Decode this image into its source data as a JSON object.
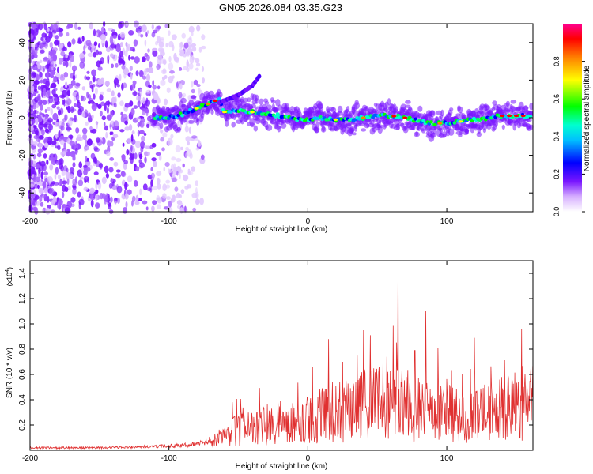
{
  "title": "GN05.2026.084.03.35.G23",
  "chart_data": [
    {
      "type": "heatmap",
      "title": "GN05.2026.084.03.35.G23",
      "xlabel": "Height of straight line (km)",
      "ylabel": "Frequency (Hz)",
      "xlim": [
        -200,
        162
      ],
      "ylim": [
        -50,
        50
      ],
      "xticks": [
        -200,
        -100,
        0,
        100
      ],
      "xtick_labels": [
        "-200",
        "-100",
        "0",
        "100"
      ],
      "yticks": [
        -40,
        -20,
        0,
        20,
        40
      ],
      "ytick_labels": [
        "-40",
        "-20",
        "0",
        "20",
        "40"
      ],
      "colorbar": {
        "label": "Normalized spectral amplitude",
        "range": [
          0,
          1
        ],
        "ticks": [
          0,
          0.2,
          0.4,
          0.6,
          0.8
        ],
        "tick_labels": [
          "0.0",
          "0.2",
          "0.4",
          "0.6",
          "0.8"
        ],
        "colormap": "rainbow (white-violet-blue-cyan-green-yellow-red-magenta)"
      },
      "ridge": {
        "x": [
          -110,
          -100,
          -90,
          -80,
          -70,
          -64,
          -60,
          -50,
          -40,
          -30,
          -20,
          -10,
          0,
          10,
          20,
          30,
          40,
          50,
          60,
          70,
          80,
          90,
          100,
          110,
          120,
          130,
          140,
          150,
          160
        ],
        "y": [
          0,
          0,
          2,
          5,
          8,
          10,
          3,
          4,
          3,
          2,
          1,
          -1,
          -1,
          0,
          -1,
          -1,
          0,
          1,
          1,
          0,
          -2,
          -3,
          -3,
          -2,
          -1,
          0,
          1,
          1,
          1
        ]
      },
      "branch": {
        "x": [
          -64,
          -50,
          -40,
          -35
        ],
        "y": [
          8,
          12,
          17,
          22
        ]
      },
      "grid": false
    },
    {
      "type": "line",
      "xlabel": "Height of straight line (km)",
      "ylabel": "SNR (10 * v/v)",
      "y_multiplier": "(x10",
      "y_multiplier_exp": "4",
      "xlim": [
        -200,
        162
      ],
      "ylim": [
        0,
        1.5
      ],
      "xticks": [
        -200,
        -100,
        0,
        100
      ],
      "xtick_labels": [
        "-200",
        "-100",
        "0",
        "100"
      ],
      "yticks": [
        0.2,
        0.4,
        0.6,
        0.8,
        1.0,
        1.2,
        1.4
      ],
      "ytick_labels": [
        "0.2",
        "0.4",
        "0.6",
        "0.8",
        "1.0",
        "1.2",
        "1.4"
      ],
      "series": [
        {
          "color": "#e03030",
          "envelope": {
            "x": [
              -200,
              -150,
              -110,
              -90,
              -80,
              -70,
              -60,
              -50,
              -40,
              -30,
              -20,
              -10,
              0,
              10,
              20,
              30,
              40,
              50,
              60,
              70,
              80,
              90,
              100,
              110,
              120,
              130,
              140,
              150,
              160
            ],
            "y": [
              0.02,
              0.02,
              0.03,
              0.04,
              0.05,
              0.08,
              0.14,
              0.22,
              0.24,
              0.26,
              0.28,
              0.3,
              0.32,
              0.35,
              0.4,
              0.42,
              0.46,
              0.5,
              0.5,
              0.48,
              0.44,
              0.4,
              0.38,
              0.36,
              0.36,
              0.38,
              0.42,
              0.46,
              0.48
            ]
          },
          "peaks": [
            {
              "x": 65,
              "y": 1.47
            },
            {
              "x": 85,
              "y": 1.1
            },
            {
              "x": 120,
              "y": 0.89
            },
            {
              "x": 40,
              "y": 0.95
            },
            {
              "x": 45,
              "y": 0.91
            },
            {
              "x": 15,
              "y": 0.88
            },
            {
              "x": 77,
              "y": 0.79
            },
            {
              "x": 57,
              "y": 0.74
            },
            {
              "x": 25,
              "y": 0.7
            }
          ]
        }
      ],
      "grid": false
    }
  ]
}
